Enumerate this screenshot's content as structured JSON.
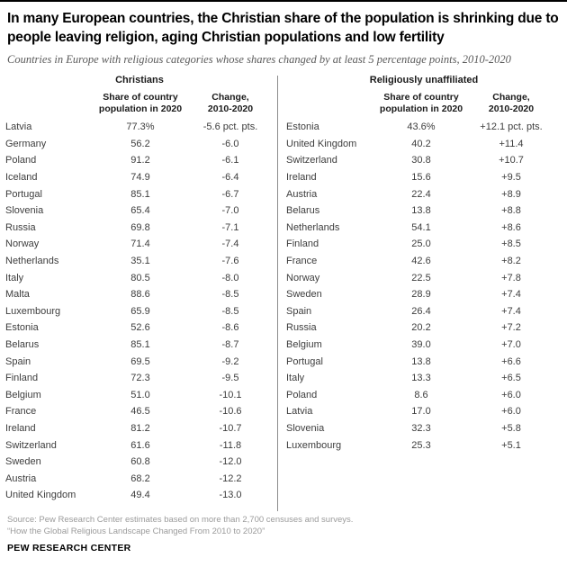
{
  "header": {
    "title": "In many European countries, the Christian share of the population is shrinking due to people leaving religion, aging Christian populations and low fertility",
    "subtitle": "Countries in Europe with religious categories whose shares changed by at least 5 percentage points, 2010-2020"
  },
  "chart_data": [
    {
      "type": "table",
      "group_label": "Christians",
      "col_headers": {
        "country": "",
        "share": "Share of country\npopulation in 2020",
        "change": "Change,\n2010-2020"
      },
      "rows": [
        [
          "Latvia",
          "77.3%",
          "-5.6 pct. pts."
        ],
        [
          "Germany",
          "56.2",
          "-6.0"
        ],
        [
          "Poland",
          "91.2",
          "-6.1"
        ],
        [
          "Iceland",
          "74.9",
          "-6.4"
        ],
        [
          "Portugal",
          "85.1",
          "-6.7"
        ],
        [
          "Slovenia",
          "65.4",
          "-7.0"
        ],
        [
          "Russia",
          "69.8",
          "-7.1"
        ],
        [
          "Norway",
          "71.4",
          "-7.4"
        ],
        [
          "Netherlands",
          "35.1",
          "-7.6"
        ],
        [
          "Italy",
          "80.5",
          "-8.0"
        ],
        [
          "Malta",
          "88.6",
          "-8.5"
        ],
        [
          "Luxembourg",
          "65.9",
          "-8.5"
        ],
        [
          "Estonia",
          "52.6",
          "-8.6"
        ],
        [
          "Belarus",
          "85.1",
          "-8.7"
        ],
        [
          "Spain",
          "69.5",
          "-9.2"
        ],
        [
          "Finland",
          "72.3",
          "-9.5"
        ],
        [
          "Belgium",
          "51.0",
          "-10.1"
        ],
        [
          "France",
          "46.5",
          "-10.6"
        ],
        [
          "Ireland",
          "81.2",
          "-10.7"
        ],
        [
          "Switzerland",
          "61.6",
          "-11.8"
        ],
        [
          "Sweden",
          "60.8",
          "-12.0"
        ],
        [
          "Austria",
          "68.2",
          "-12.2"
        ],
        [
          "United Kingdom",
          "49.4",
          "-13.0"
        ]
      ]
    },
    {
      "type": "table",
      "group_label": "Religiously unaffiliated",
      "col_headers": {
        "country": "",
        "share": "Share of country\npopulation in 2020",
        "change": "Change,\n2010-2020"
      },
      "rows": [
        [
          "Estonia",
          "43.6%",
          "+12.1 pct. pts."
        ],
        [
          "United Kingdom",
          "40.2",
          "+11.4"
        ],
        [
          "Switzerland",
          "30.8",
          "+10.7"
        ],
        [
          "Ireland",
          "15.6",
          "+9.5"
        ],
        [
          "Austria",
          "22.4",
          "+8.9"
        ],
        [
          "Belarus",
          "13.8",
          "+8.8"
        ],
        [
          "Netherlands",
          "54.1",
          "+8.6"
        ],
        [
          "Finland",
          "25.0",
          "+8.5"
        ],
        [
          "France",
          "42.6",
          "+8.2"
        ],
        [
          "Norway",
          "22.5",
          "+7.8"
        ],
        [
          "Sweden",
          "28.9",
          "+7.4"
        ],
        [
          "Spain",
          "26.4",
          "+7.4"
        ],
        [
          "Russia",
          "20.2",
          "+7.2"
        ],
        [
          "Belgium",
          "39.0",
          "+7.0"
        ],
        [
          "Portugal",
          "13.8",
          "+6.6"
        ],
        [
          "Italy",
          "13.3",
          "+6.5"
        ],
        [
          "Poland",
          "8.6",
          "+6.0"
        ],
        [
          "Latvia",
          "17.0",
          "+6.0"
        ],
        [
          "Slovenia",
          "32.3",
          "+5.8"
        ],
        [
          "Luxembourg",
          "25.3",
          "+5.1"
        ]
      ]
    }
  ],
  "footer": {
    "source": "Source: Pew Research Center estimates based on more than 2,700 censuses and surveys.",
    "study_title": "“How the Global Religious Landscape Changed From 2010 to 2020”",
    "brand": "PEW RESEARCH CENTER"
  },
  "colors": {
    "top_rule": "#000000",
    "subtitle_gray": "#5a5a5a",
    "body_text": "#3d3d3d",
    "footer_gray": "#9b9b9b",
    "divider_gray": "#8c8c8c"
  }
}
